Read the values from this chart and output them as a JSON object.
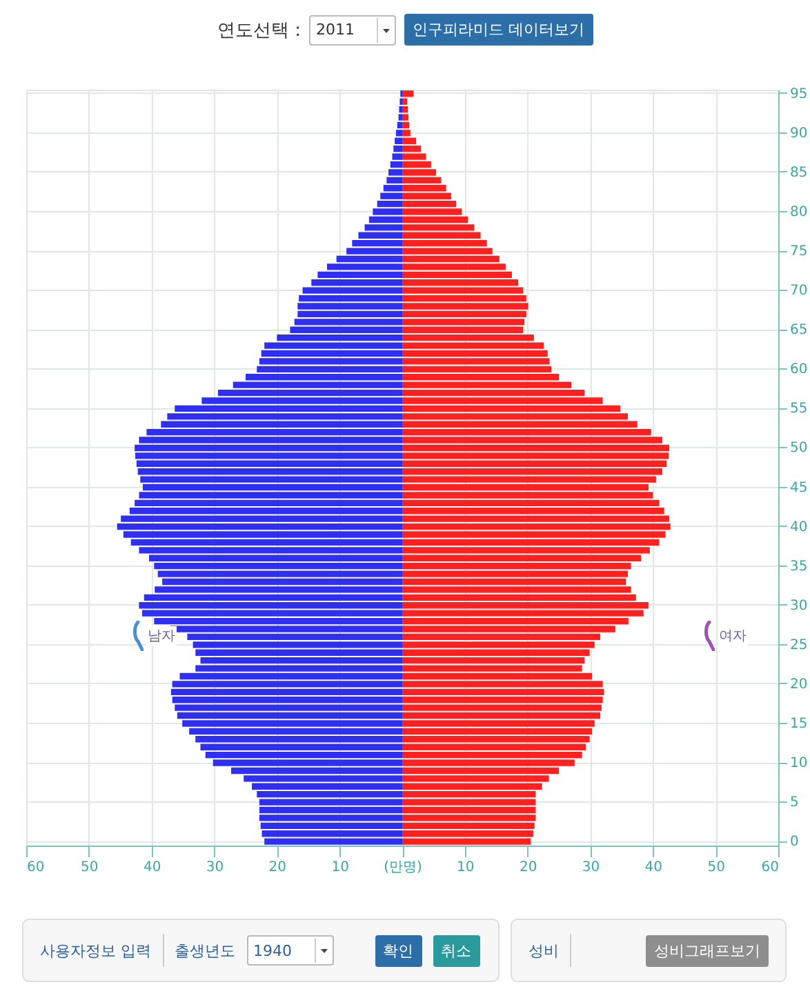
{
  "chart_data": {
    "type": "bar",
    "orientation": "horizontal",
    "stacked": true,
    "grid": true,
    "categories": [
      "95",
      null,
      null,
      null,
      null,
      "90",
      null,
      null,
      null,
      null,
      "85",
      null,
      null,
      null,
      null,
      "80",
      null,
      null,
      null,
      null,
      "75",
      null,
      null,
      null,
      null,
      "70",
      null,
      null,
      null,
      null,
      "65",
      null,
      null,
      null,
      null,
      "60",
      null,
      null,
      null,
      null,
      "55",
      null,
      null,
      null,
      null,
      "50",
      null,
      null,
      null,
      null,
      "45",
      null,
      null,
      null,
      null,
      "40",
      null,
      null,
      null,
      null,
      "35",
      null,
      null,
      null,
      null,
      "30",
      null,
      null,
      null,
      null,
      "25",
      null,
      null,
      null,
      null,
      "20",
      null,
      null,
      null,
      null,
      "15",
      null,
      null,
      null,
      null,
      "10",
      null,
      null,
      null,
      null,
      "5",
      null,
      null,
      null,
      null,
      "0"
    ],
    "series": [
      {
        "color": "#2f2ff2",
        "values": [
          -0.3,
          -0.4,
          -0.5,
          -0.6,
          -0.8,
          -1.0,
          -1.2,
          -1.4,
          -1.6,
          -1.9,
          -2.2,
          -2.5,
          -3,
          -3.5,
          -4,
          -4.7,
          -5.3,
          -6,
          -7,
          -8,
          -8.9,
          -10.5,
          -12,
          -13.5,
          -14.5,
          -15.9,
          -16.5,
          -16.7,
          -16.7,
          -17.2,
          -17.9,
          -20,
          -22,
          -22.5,
          -22.8,
          -23.2,
          -25,
          -27,
          -29.4,
          -32,
          -36.3,
          -37.5,
          -38.5,
          -40.8,
          -42,
          -42.7,
          -42.6,
          -42.4,
          -42.2,
          -41.8,
          -41.4,
          -42,
          -42.7,
          -43.5,
          -44.9,
          -45.5,
          -44.5,
          -43.3,
          -42,
          -40.4,
          -39.6,
          -39,
          -38.3,
          -39.5,
          -41.2,
          -42,
          -41.5,
          -39.6,
          -37,
          -34.3,
          -33.4,
          -33,
          -32.2,
          -33,
          -35.5,
          -36.7,
          -36.9,
          -36.7,
          -36.3,
          -35.9,
          -35.1,
          -34,
          -33,
          -32.2,
          -31.4,
          -30.2,
          -27.3,
          -25.3,
          -24,
          -23.2,
          -22.8,
          -22.8,
          -22.8,
          -22.6,
          -22.4,
          -22
        ]
      },
      {
        "color": "#ff2020",
        "values": [
          1.8,
          0.8,
          0.9,
          1.0,
          1.1,
          1.3,
          2.2,
          3,
          3.8,
          4.6,
          5.4,
          6.2,
          7,
          7.8,
          8.6,
          9.5,
          10.5,
          11.5,
          12.5,
          13.5,
          14.4,
          15.5,
          16.5,
          17.5,
          18.5,
          19.3,
          19.8,
          20.1,
          19.8,
          19.5,
          19.3,
          21,
          22.6,
          23.2,
          23.5,
          23.8,
          25,
          27,
          29.1,
          32,
          34.8,
          36,
          37.5,
          39.7,
          41.5,
          42.6,
          42.5,
          42.2,
          41.5,
          40.5,
          39.3,
          40,
          41,
          41.8,
          42.6,
          42.8,
          42,
          41,
          39.5,
          38.1,
          36.5,
          36,
          35.7,
          36.5,
          37.3,
          39.3,
          38.5,
          36.1,
          34,
          31.6,
          30.7,
          29.9,
          29.1,
          28.7,
          30.3,
          32,
          32.2,
          32,
          31.8,
          31.6,
          30.7,
          30.3,
          29.9,
          29.3,
          28.7,
          27.5,
          25,
          23.4,
          22.3,
          21.3,
          21.3,
          21.3,
          21.3,
          21.1,
          20.9,
          20.5
        ]
      }
    ],
    "xlim": [
      -60,
      60
    ],
    "xticks": [
      {
        "value": -60,
        "label": "60"
      },
      {
        "value": -50,
        "label": "50"
      },
      {
        "value": -40,
        "label": "40"
      },
      {
        "value": -30,
        "label": "30"
      },
      {
        "value": -20,
        "label": "20"
      },
      {
        "value": -10,
        "label": "10"
      },
      {
        "value": 0,
        "label": "(만명)"
      },
      10,
      20,
      30,
      40,
      50,
      60
    ],
    "annotations": [
      "연도선택 :",
      "2011",
      "인구피라미드 데이터보기",
      "사용자정보 입력",
      "출생년도",
      "1940",
      "확인",
      "취소",
      "성비",
      "성비그래프보기",
      "남자",
      "여자"
    ]
  }
}
